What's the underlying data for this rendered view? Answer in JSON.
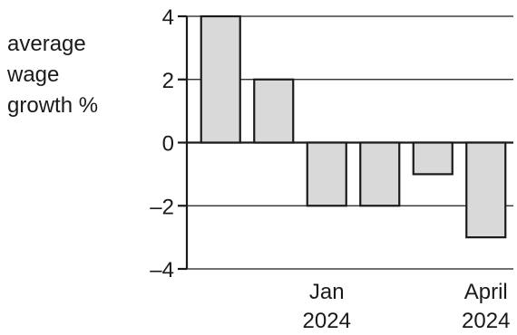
{
  "chart_data": {
    "type": "bar",
    "ylabel_lines": [
      "average",
      "wage",
      "growth %"
    ],
    "values": [
      4,
      2,
      -2,
      -2,
      -1,
      -3
    ],
    "x_tick_labels": [
      {
        "index": 2.5,
        "lines": [
          "Jan",
          "2024"
        ]
      },
      {
        "index": 5.5,
        "lines": [
          "April",
          "2024"
        ]
      }
    ],
    "yticks": [
      4,
      2,
      0,
      -2,
      -4
    ],
    "ylim": [
      -4,
      4
    ],
    "grid": true,
    "colors": {
      "bar_fill": "#d9d9d9",
      "bar_stroke": "#1a1a1a",
      "axis": "#1a1a1a",
      "grid": "#1a1a1a"
    }
  }
}
